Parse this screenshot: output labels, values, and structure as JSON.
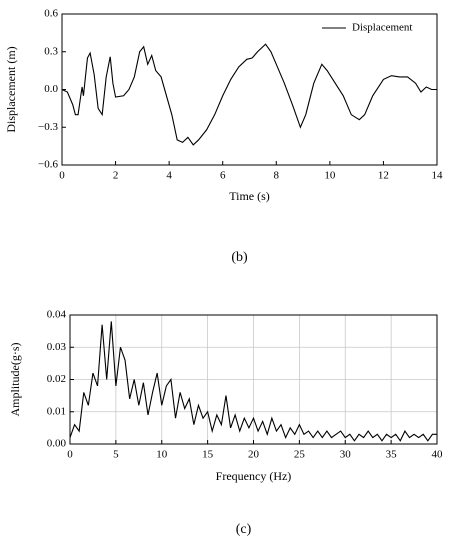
{
  "chart_data": [
    {
      "type": "line",
      "label": "(b)",
      "xlabel": "Time (s)",
      "ylabel": "Displacement (m)",
      "x": [
        0,
        0.2,
        0.4,
        0.5,
        0.6,
        0.7,
        0.75,
        0.8,
        0.95,
        1.05,
        1.2,
        1.35,
        1.5,
        1.65,
        1.8,
        1.9,
        2.0,
        2.3,
        2.5,
        2.7,
        2.9,
        3.05,
        3.2,
        3.35,
        3.5,
        3.7,
        3.9,
        4.1,
        4.3,
        4.5,
        4.7,
        4.9,
        5.1,
        5.4,
        5.7,
        6.0,
        6.3,
        6.6,
        6.9,
        7.1,
        7.3,
        7.6,
        7.8,
        8.0,
        8.3,
        8.6,
        8.9,
        9.1,
        9.4,
        9.7,
        9.9,
        10.2,
        10.5,
        10.8,
        11.1,
        11.3,
        11.6,
        12.0,
        12.3,
        12.6,
        12.9,
        13.2,
        13.4,
        13.6,
        13.8,
        14.0
      ],
      "series": [
        {
          "name": "Displacement",
          "color": "#000000",
          "values": [
            0.0,
            -0.02,
            -0.12,
            -0.2,
            -0.2,
            -0.05,
            0.02,
            -0.05,
            0.25,
            0.29,
            0.12,
            -0.15,
            -0.2,
            0.1,
            0.26,
            0.05,
            -0.06,
            -0.05,
            0.0,
            0.1,
            0.3,
            0.34,
            0.2,
            0.27,
            0.15,
            0.1,
            -0.05,
            -0.2,
            -0.4,
            -0.42,
            -0.38,
            -0.44,
            -0.4,
            -0.32,
            -0.2,
            -0.05,
            0.08,
            0.18,
            0.24,
            0.25,
            0.3,
            0.36,
            0.3,
            0.2,
            0.05,
            -0.12,
            -0.3,
            -0.2,
            0.05,
            0.2,
            0.15,
            0.05,
            -0.05,
            -0.2,
            -0.24,
            -0.2,
            -0.05,
            0.08,
            0.11,
            0.1,
            0.1,
            0.05,
            -0.02,
            0.02,
            0.0,
            0.0
          ]
        }
      ],
      "xlim": [
        0,
        14
      ],
      "xticks": [
        0,
        2,
        4,
        6,
        8,
        10,
        12,
        14
      ],
      "ylim": [
        -0.6,
        0.6
      ],
      "yticks": [
        {
          "value": -0.6,
          "label": "−0.6"
        },
        {
          "value": -0.3,
          "label": "−0.3"
        },
        {
          "value": 0,
          "label": "0.0"
        },
        0.3,
        0.6
      ],
      "grid": false,
      "legend": "upper right"
    },
    {
      "type": "line",
      "label": "(c)",
      "xlabel": "Frequency (Hz)",
      "ylabel": "Amplitude(g·s)",
      "x": [
        0,
        0.5,
        1,
        1.5,
        2,
        2.5,
        3,
        3.5,
        4,
        4.5,
        5,
        5.5,
        6,
        6.5,
        7,
        7.5,
        8,
        8.5,
        9,
        9.5,
        10,
        10.5,
        11,
        11.5,
        12,
        12.5,
        13,
        13.5,
        14,
        14.5,
        15,
        15.5,
        16,
        16.5,
        17,
        17.5,
        18,
        18.5,
        19,
        19.5,
        20,
        20.5,
        21,
        21.5,
        22,
        22.5,
        23,
        23.5,
        24,
        24.5,
        25,
        25.5,
        26,
        26.5,
        27,
        27.5,
        28,
        28.5,
        29,
        29.5,
        30,
        30.5,
        31,
        31.5,
        32,
        32.5,
        33,
        33.5,
        34,
        34.5,
        35,
        35.5,
        36,
        36.5,
        37,
        37.5,
        38,
        38.5,
        39,
        39.5,
        40
      ],
      "series": [
        {
          "color": "#000000",
          "values": [
            0.002,
            0.006,
            0.004,
            0.016,
            0.012,
            0.022,
            0.018,
            0.037,
            0.02,
            0.038,
            0.018,
            0.03,
            0.026,
            0.014,
            0.02,
            0.012,
            0.019,
            0.009,
            0.016,
            0.022,
            0.012,
            0.018,
            0.02,
            0.008,
            0.016,
            0.011,
            0.014,
            0.006,
            0.012,
            0.008,
            0.01,
            0.004,
            0.009,
            0.006,
            0.015,
            0.005,
            0.009,
            0.004,
            0.008,
            0.005,
            0.008,
            0.004,
            0.007,
            0.003,
            0.008,
            0.004,
            0.006,
            0.002,
            0.005,
            0.003,
            0.006,
            0.003,
            0.004,
            0.002,
            0.004,
            0.002,
            0.004,
            0.002,
            0.003,
            0.004,
            0.002,
            0.003,
            0.001,
            0.003,
            0.002,
            0.004,
            0.002,
            0.003,
            0.001,
            0.003,
            0.002,
            0.003,
            0.001,
            0.004,
            0.002,
            0.003,
            0.002,
            0.003,
            0.001,
            0.003,
            0.003
          ]
        }
      ],
      "xlim": [
        0,
        40
      ],
      "xticks": [
        0,
        5,
        10,
        15,
        20,
        25,
        30,
        35,
        40
      ],
      "ylim": [
        0,
        0.04
      ],
      "yticks": [
        {
          "value": 0,
          "label": "0.00"
        },
        {
          "value": 0.01,
          "label": "0.01"
        },
        {
          "value": 0.02,
          "label": "0.02"
        },
        {
          "value": 0.03,
          "label": "0.03"
        },
        {
          "value": 0.04,
          "label": "0.04"
        }
      ],
      "grid": true
    }
  ]
}
